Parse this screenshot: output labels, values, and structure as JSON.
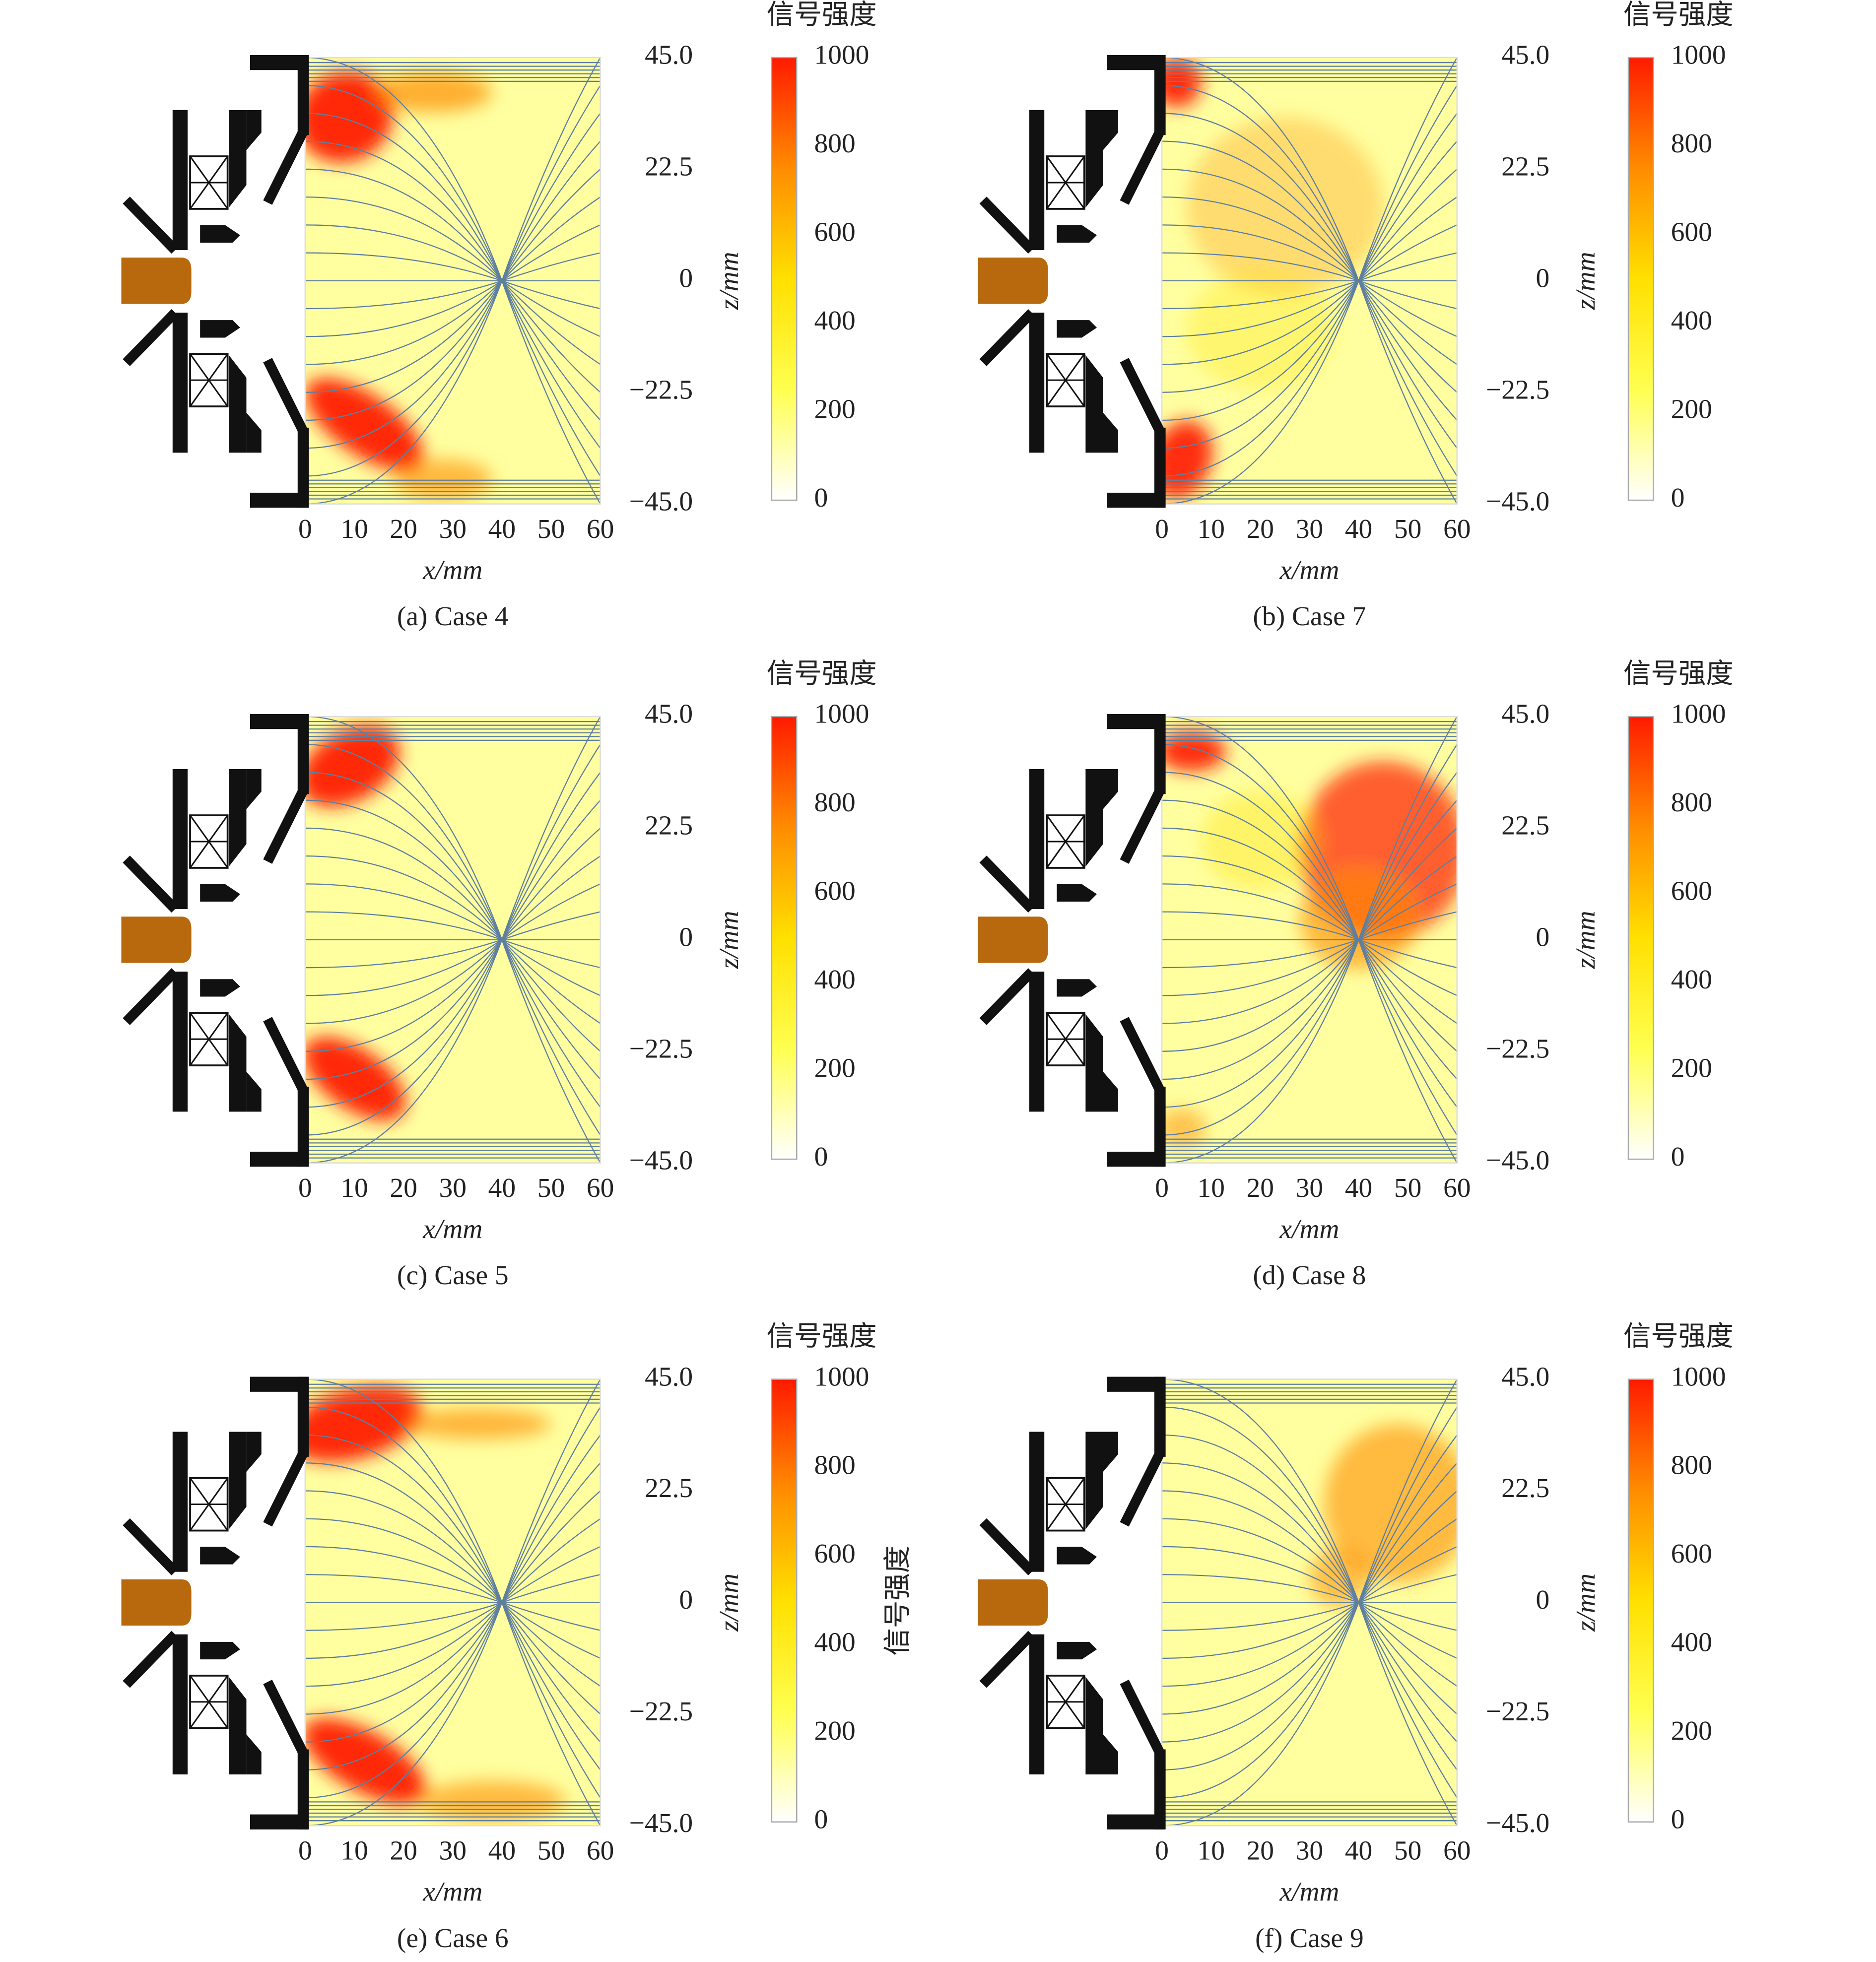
{
  "chart_data": [
    {
      "type": "heatmap",
      "caption": "(a) Case 4",
      "xlabel": "x/mm",
      "ylabel": "z/mm",
      "xlim": [
        0,
        60
      ],
      "xticks": [
        0,
        10,
        20,
        30,
        40,
        50,
        60
      ],
      "ylim": [
        -45,
        45
      ],
      "yticks": [
        {
          "value": 45,
          "label": "45.0"
        },
        {
          "value": 22.5,
          "label": "22.5"
        },
        0,
        {
          "value": -22.5,
          "label": "−22.5"
        },
        {
          "value": -45,
          "label": "−45.0"
        }
      ],
      "colorbar": {
        "title": "信号强度",
        "lim": [
          0,
          1000
        ],
        "ticks": [
          0,
          200,
          400,
          600,
          800,
          1000
        ],
        "colors": [
          "#ffffff",
          "#ffff50",
          "#ffe000",
          "#ff8c00",
          "#ff1a00"
        ]
      }
    },
    {
      "type": "heatmap",
      "caption": "(b) Case 7",
      "xlabel": "x/mm",
      "ylabel": "z/mm",
      "xlim": [
        0,
        60
      ],
      "xticks": [
        0,
        10,
        20,
        30,
        40,
        50,
        60
      ],
      "ylim": [
        -45,
        45
      ],
      "yticks": [
        {
          "value": 45,
          "label": "45.0"
        },
        {
          "value": 22.5,
          "label": "22.5"
        },
        0,
        {
          "value": -22.5,
          "label": "−22.5"
        },
        {
          "value": -45,
          "label": "−45.0"
        }
      ],
      "colorbar": {
        "title": "信号强度",
        "lim": [
          0,
          1000
        ],
        "ticks": [
          0,
          200,
          400,
          600,
          800,
          1000
        ],
        "colors": [
          "#ffffff",
          "#ffff50",
          "#ffe000",
          "#ff8c00",
          "#ff1a00"
        ]
      }
    },
    {
      "type": "heatmap",
      "caption": "(c) Case 5",
      "xlabel": "x/mm",
      "ylabel": "z/mm",
      "xlim": [
        0,
        60
      ],
      "xticks": [
        0,
        10,
        20,
        30,
        40,
        50,
        60
      ],
      "ylim": [
        -45,
        45
      ],
      "yticks": [
        {
          "value": 45,
          "label": "45.0"
        },
        {
          "value": 22.5,
          "label": "22.5"
        },
        0,
        {
          "value": -22.5,
          "label": "−22.5"
        },
        {
          "value": -45,
          "label": "−45.0"
        }
      ],
      "colorbar": {
        "title": "信号强度",
        "lim": [
          0,
          1000
        ],
        "ticks": [
          0,
          200,
          400,
          600,
          800,
          1000
        ],
        "colors": [
          "#ffffff",
          "#ffff50",
          "#ffe000",
          "#ff8c00",
          "#ff1a00"
        ]
      }
    },
    {
      "type": "heatmap",
      "caption": "(d) Case 8",
      "xlabel": "x/mm",
      "ylabel": "z/mm",
      "xlim": [
        0,
        60
      ],
      "xticks": [
        0,
        10,
        20,
        30,
        40,
        50,
        60
      ],
      "ylim": [
        -45,
        45
      ],
      "yticks": [
        {
          "value": 45,
          "label": "45.0"
        },
        {
          "value": 22.5,
          "label": "22.5"
        },
        0,
        {
          "value": -22.5,
          "label": "−22.5"
        },
        {
          "value": -45,
          "label": "−45.0"
        }
      ],
      "colorbar": {
        "title": "信号强度",
        "lim": [
          0,
          1000
        ],
        "ticks": [
          0,
          200,
          400,
          600,
          800,
          1000
        ],
        "colors": [
          "#ffffff",
          "#ffff50",
          "#ffe000",
          "#ff8c00",
          "#ff1a00"
        ]
      }
    },
    {
      "type": "heatmap",
      "caption": "(e) Case 6",
      "xlabel": "x/mm",
      "ylabel": "z/mm",
      "xlim": [
        0,
        60
      ],
      "xticks": [
        0,
        10,
        20,
        30,
        40,
        50,
        60
      ],
      "ylim": [
        -45,
        45
      ],
      "yticks": [
        {
          "value": 45,
          "label": "45.0"
        },
        {
          "value": 22.5,
          "label": "22.5"
        },
        0,
        {
          "value": -22.5,
          "label": "−22.5"
        },
        {
          "value": -45,
          "label": "−45.0"
        }
      ],
      "colorbar": {
        "title": "信号强度",
        "label": "信号强度",
        "lim": [
          0,
          1000
        ],
        "ticks": [
          0,
          200,
          400,
          600,
          800,
          1000
        ],
        "colors": [
          "#ffffff",
          "#ffff50",
          "#ffe000",
          "#ff8c00",
          "#ff1a00"
        ]
      }
    },
    {
      "type": "heatmap",
      "caption": "(f) Case 9",
      "xlabel": "x/mm",
      "ylabel": "z/mm",
      "xlim": [
        0,
        60
      ],
      "xticks": [
        0,
        10,
        20,
        30,
        40,
        50,
        60
      ],
      "ylim": [
        -45,
        45
      ],
      "yticks": [
        {
          "value": 45,
          "label": "45.0"
        },
        {
          "value": 22.5,
          "label": "22.5"
        },
        0,
        {
          "value": -22.5,
          "label": "−22.5"
        },
        {
          "value": -45,
          "label": "−45.0"
        }
      ],
      "colorbar": {
        "title": "信号强度",
        "lim": [
          0,
          1000
        ],
        "ticks": [
          0,
          200,
          400,
          600,
          800,
          1000
        ],
        "colors": [
          "#ffffff",
          "#ffff50",
          "#ffe000",
          "#ff8c00",
          "#ff1a00"
        ]
      }
    }
  ]
}
